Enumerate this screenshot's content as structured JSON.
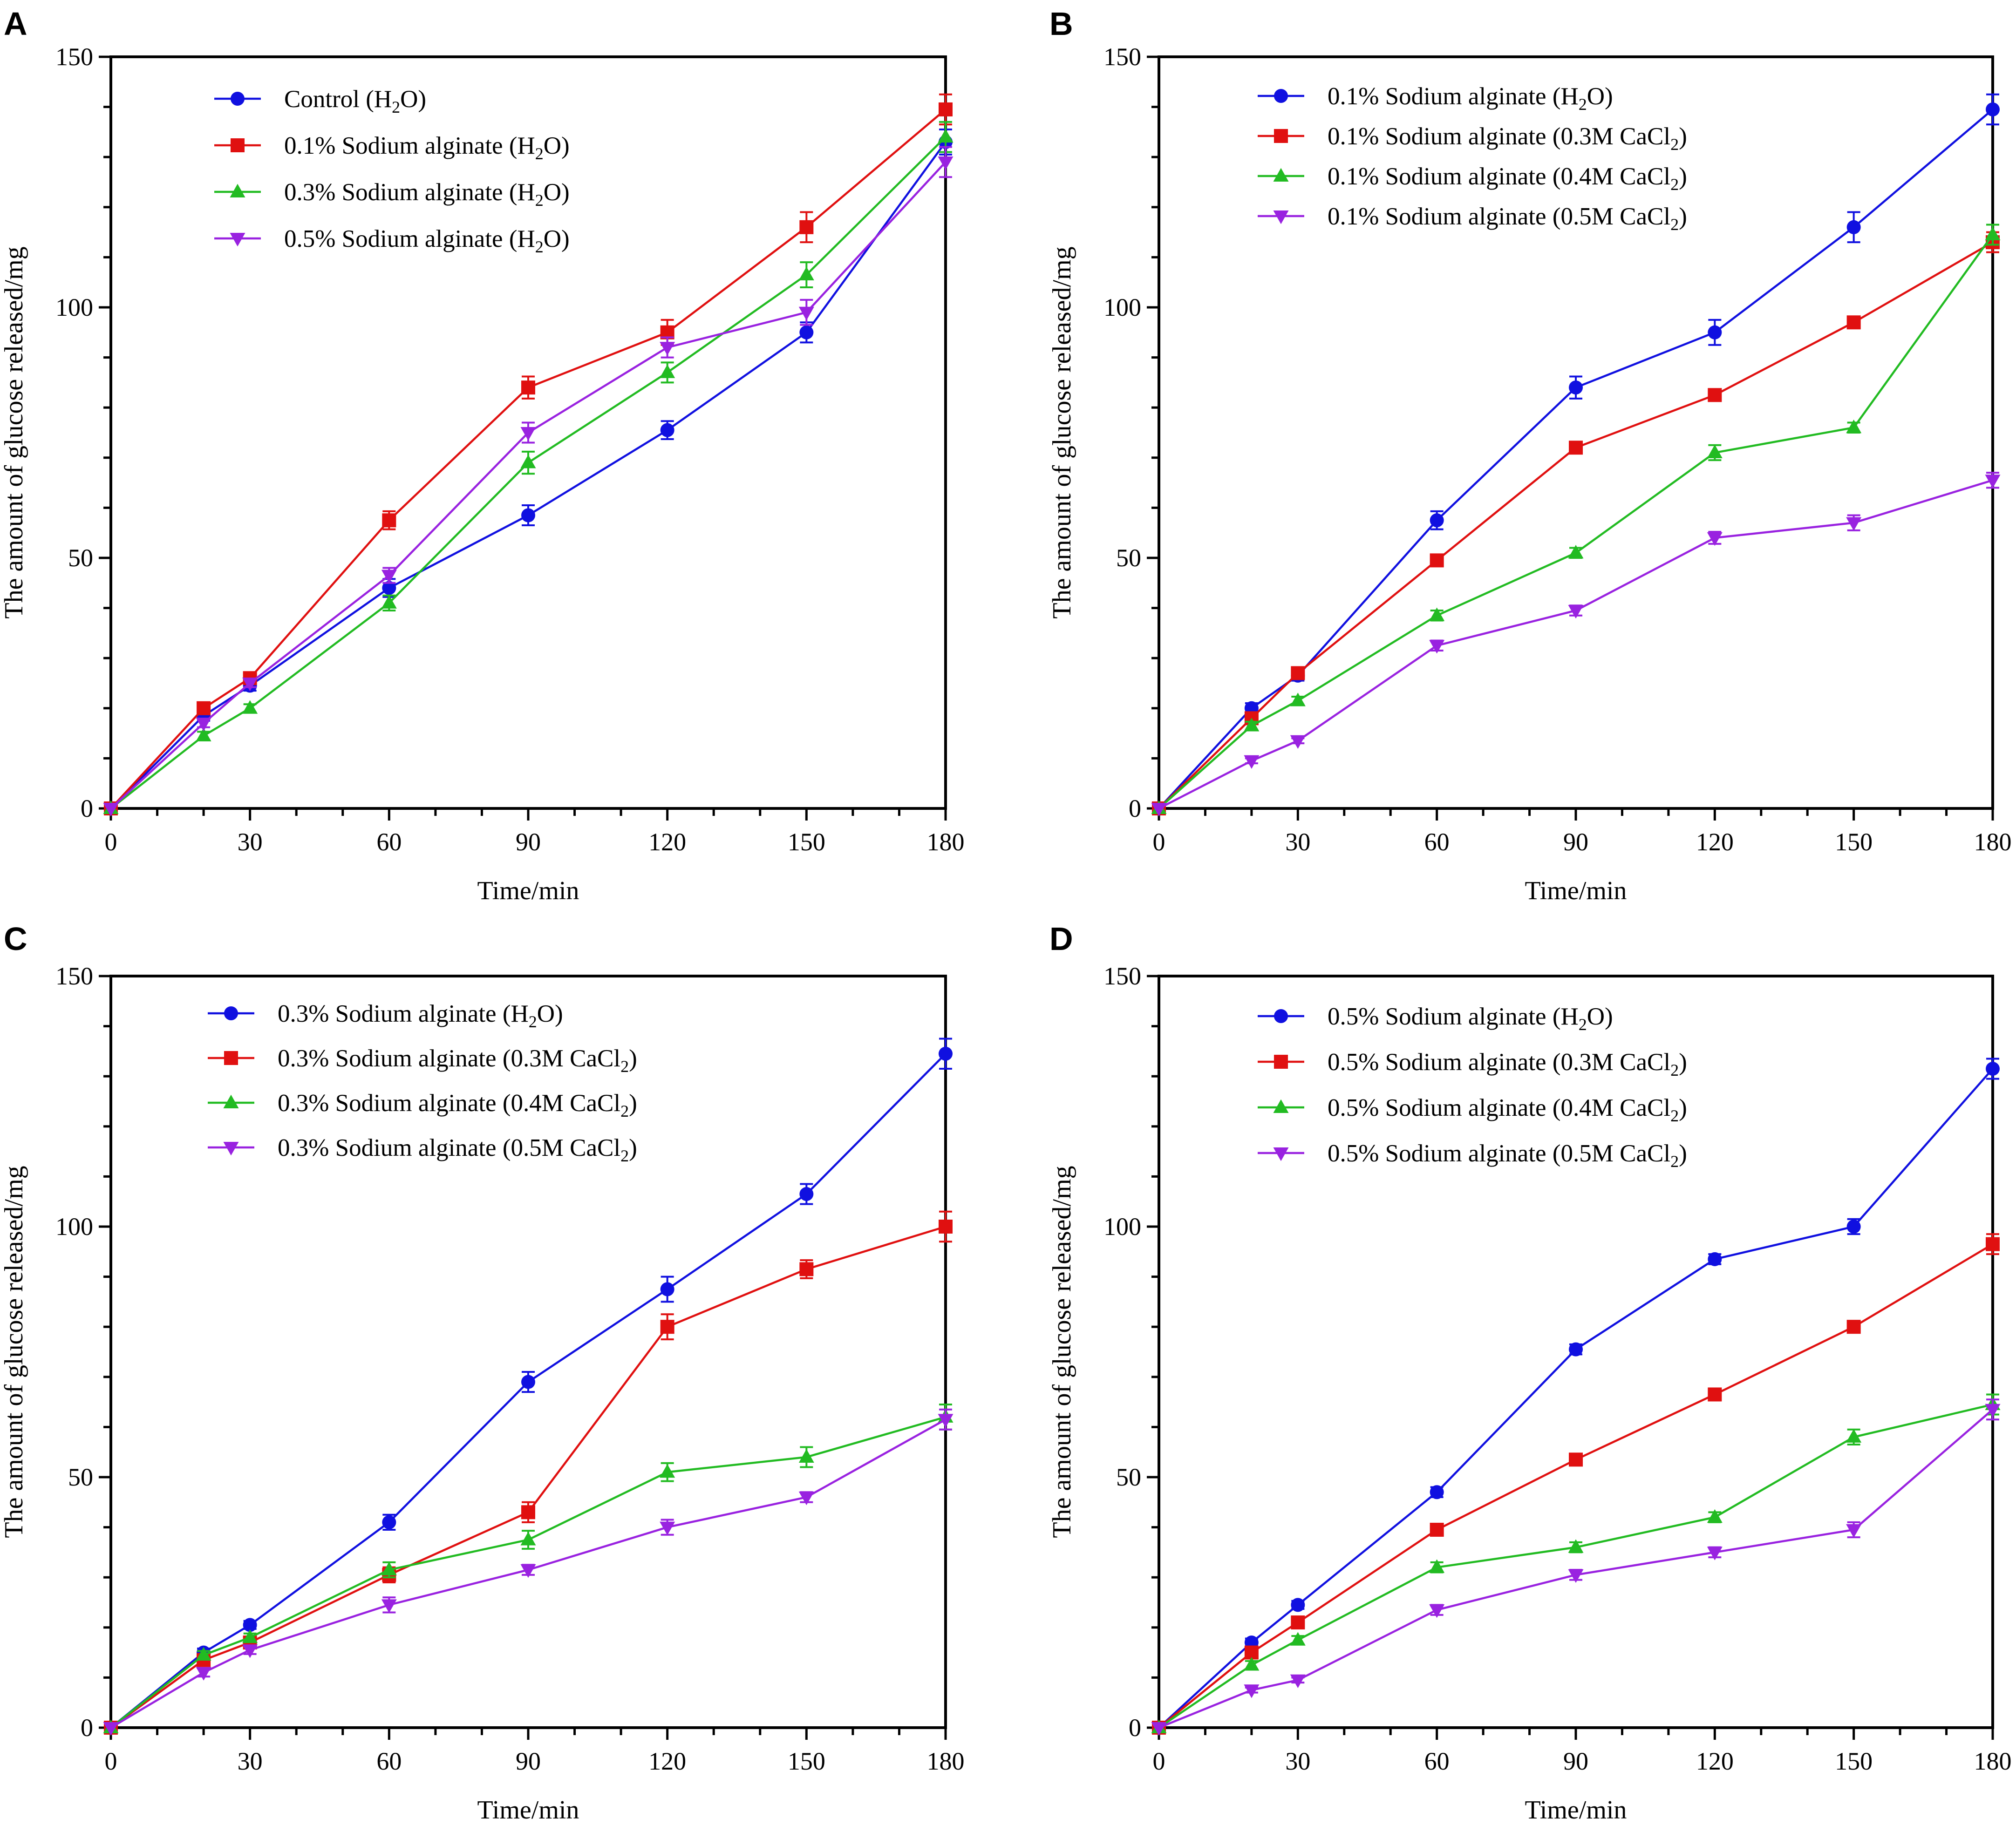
{
  "colors": {
    "blue": "#1010e0",
    "red": "#e01010",
    "green": "#22bb22",
    "purple": "#9922e0"
  },
  "chart_data": [
    {
      "panel": "A",
      "type": "line",
      "xlabel": "Time/min",
      "ylabel": "The amount of glucose released/mg",
      "xlim": [
        0,
        180
      ],
      "ylim": [
        0,
        150
      ],
      "xticks": [
        "0",
        "30",
        "60",
        "90",
        "120",
        "150",
        "180"
      ],
      "yticks": [
        "0",
        "50",
        "100",
        "150"
      ],
      "x": [
        0,
        20,
        30,
        60,
        90,
        120,
        150,
        180
      ],
      "legend_position": "top-left",
      "series": [
        {
          "label_pre": "Control (H",
          "label_sub": "2",
          "label_post": "O)",
          "color": "blue",
          "marker": "circle",
          "values": [
            0,
            18.5,
            24.5,
            44,
            58.5,
            75.5,
            95,
            133
          ],
          "errors": [
            0,
            1,
            1,
            1.8,
            2,
            1.8,
            2,
            2.5
          ]
        },
        {
          "label_pre": "0.1% Sodium alginate (H",
          "label_sub": "2",
          "label_post": "O)",
          "color": "red",
          "marker": "square",
          "values": [
            0,
            20,
            26,
            57.5,
            84,
            95,
            116,
            139.5
          ],
          "errors": [
            0,
            1,
            1,
            1.8,
            2.2,
            2.5,
            3,
            3
          ]
        },
        {
          "label_pre": "0.3% Sodium alginate (H",
          "label_sub": "2",
          "label_post": "O)",
          "color": "green",
          "marker": "triangle-up",
          "values": [
            0,
            14.5,
            20,
            41,
            69,
            87,
            106.5,
            134
          ],
          "errors": [
            0,
            0.8,
            0.8,
            1.5,
            2.2,
            2,
            2.5,
            3
          ]
        },
        {
          "label_pre": "0.5% Sodium alginate (H",
          "label_sub": "2",
          "label_post": "O)",
          "color": "purple",
          "marker": "triangle-down",
          "values": [
            0,
            17,
            25,
            46.5,
            75,
            92,
            99,
            129
          ],
          "errors": [
            0,
            0.8,
            0.8,
            1.5,
            2,
            2,
            2.5,
            3
          ]
        }
      ]
    },
    {
      "panel": "B",
      "type": "line",
      "xlabel": "Time/min",
      "ylabel": "The amount of glucose released/mg",
      "xlim": [
        0,
        180
      ],
      "ylim": [
        0,
        150
      ],
      "xticks": [
        "0",
        "30",
        "60",
        "90",
        "120",
        "150",
        "180"
      ],
      "yticks": [
        "0",
        "50",
        "100",
        "150"
      ],
      "x": [
        0,
        20,
        30,
        60,
        90,
        120,
        150,
        180
      ],
      "legend_position": "top-left",
      "series": [
        {
          "label_pre": "0.1% Sodium alginate (H",
          "label_sub": "2",
          "label_post": "O)",
          "color": "blue",
          "marker": "circle",
          "values": [
            0,
            20,
            26.5,
            57.5,
            84,
            95,
            116,
            139.5
          ],
          "errors": [
            0,
            1,
            1,
            1.8,
            2.2,
            2.5,
            3,
            3
          ]
        },
        {
          "label_pre": "0.1% Sodium alginate (0.3M CaCl",
          "label_sub": "2",
          "label_post": ")",
          "color": "red",
          "marker": "square",
          "values": [
            0,
            18,
            27,
            49.5,
            72,
            82.5,
            97,
            113
          ],
          "errors": [
            0,
            0.8,
            0.8,
            1,
            1,
            1,
            1,
            2
          ]
        },
        {
          "label_pre": "0.1% Sodium alginate (0.4M CaCl",
          "label_sub": "2",
          "label_post": ")",
          "color": "green",
          "marker": "triangle-up",
          "values": [
            0,
            16.5,
            21.5,
            38.5,
            51,
            71,
            76,
            114.5
          ],
          "errors": [
            0,
            0.8,
            0.8,
            1,
            1,
            1.5,
            1,
            2
          ]
        },
        {
          "label_pre": "0.1% Sodium alginate (0.5M CaCl",
          "label_sub": "2",
          "label_post": ")",
          "color": "purple",
          "marker": "triangle-down",
          "values": [
            0,
            9.5,
            13.5,
            32.5,
            39.5,
            54,
            57,
            65.5
          ],
          "errors": [
            0,
            0.5,
            0.5,
            1,
            1,
            1.2,
            1.5,
            1.5
          ]
        }
      ]
    },
    {
      "panel": "C",
      "type": "line",
      "xlabel": "Time/min",
      "ylabel": "The amount of glucose released/mg",
      "xlim": [
        0,
        180
      ],
      "ylim": [
        0,
        150
      ],
      "xticks": [
        "0",
        "30",
        "60",
        "90",
        "120",
        "150",
        "180"
      ],
      "yticks": [
        "0",
        "50",
        "100",
        "150"
      ],
      "x": [
        0,
        20,
        30,
        60,
        90,
        120,
        150,
        180
      ],
      "legend_position": "top-left",
      "series": [
        {
          "label_pre": "0.3% Sodium alginate (H",
          "label_sub": "2",
          "label_post": "O)",
          "color": "blue",
          "marker": "circle",
          "values": [
            0,
            15,
            20.5,
            41,
            69,
            87.5,
            106.5,
            134.5
          ],
          "errors": [
            0,
            0.8,
            0.8,
            1.5,
            2,
            2.5,
            2,
            3
          ]
        },
        {
          "label_pre": "0.3% Sodium alginate (0.3M CaCl",
          "label_sub": "2",
          "label_post": ")",
          "color": "red",
          "marker": "square",
          "values": [
            0,
            13.5,
            17,
            30.5,
            43,
            80,
            91.5,
            100
          ],
          "errors": [
            0,
            0.8,
            0.8,
            1.5,
            2,
            2.5,
            1.8,
            3
          ]
        },
        {
          "label_pre": "0.3% Sodium alginate (0.4M CaCl",
          "label_sub": "2",
          "label_post": ")",
          "color": "green",
          "marker": "triangle-up",
          "values": [
            0,
            14.5,
            18,
            31.5,
            37.5,
            51,
            54,
            62
          ],
          "errors": [
            0,
            0.8,
            0.8,
            1.5,
            1.8,
            1.8,
            2,
            2.5
          ]
        },
        {
          "label_pre": "0.3% Sodium alginate (0.5M CaCl",
          "label_sub": "2",
          "label_post": ")",
          "color": "purple",
          "marker": "triangle-down",
          "values": [
            0,
            11,
            15.5,
            24.5,
            31.5,
            40,
            46,
            61.5
          ],
          "errors": [
            0,
            0.8,
            0.8,
            1.5,
            1,
            1.5,
            1,
            2
          ]
        }
      ]
    },
    {
      "panel": "D",
      "type": "line",
      "xlabel": "Time/min",
      "ylabel": "The amount of glucose released/mg",
      "xlim": [
        0,
        180
      ],
      "ylim": [
        0,
        150
      ],
      "xticks": [
        "0",
        "30",
        "60",
        "90",
        "120",
        "150",
        "180"
      ],
      "yticks": [
        "0",
        "50",
        "100",
        "150"
      ],
      "x": [
        0,
        20,
        30,
        60,
        90,
        120,
        150,
        180
      ],
      "legend_position": "top-left",
      "series": [
        {
          "label_pre": "0.5% Sodium alginate (H",
          "label_sub": "2",
          "label_post": "O)",
          "color": "blue",
          "marker": "circle",
          "values": [
            0,
            17,
            24.5,
            47,
            75.5,
            93.5,
            100,
            131.5
          ],
          "errors": [
            0,
            0.8,
            0.8,
            1,
            1,
            1,
            1.5,
            2
          ]
        },
        {
          "label_pre": "0.5% Sodium alginate (0.3M CaCl",
          "label_sub": "2",
          "label_post": ")",
          "color": "red",
          "marker": "square",
          "values": [
            0,
            15,
            21,
            39.5,
            53.5,
            66.5,
            80,
            96.5
          ],
          "errors": [
            0,
            0.8,
            0.8,
            1,
            1,
            1,
            1,
            2
          ]
        },
        {
          "label_pre": "0.5% Sodium alginate (0.4M CaCl",
          "label_sub": "2",
          "label_post": ")",
          "color": "green",
          "marker": "triangle-up",
          "values": [
            0,
            12.5,
            17.5,
            32,
            36,
            42,
            58,
            64.5
          ],
          "errors": [
            0,
            0.8,
            0.8,
            1,
            1,
            1,
            1.5,
            2
          ]
        },
        {
          "label_pre": "0.5% Sodium alginate (0.5M CaCl",
          "label_sub": "2",
          "label_post": ")",
          "color": "purple",
          "marker": "triangle-down",
          "values": [
            0,
            7.5,
            9.5,
            23.5,
            30.5,
            35,
            39.5,
            63.5
          ],
          "errors": [
            0,
            0.5,
            0.5,
            1,
            1,
            1,
            1.5,
            2
          ]
        }
      ]
    }
  ]
}
